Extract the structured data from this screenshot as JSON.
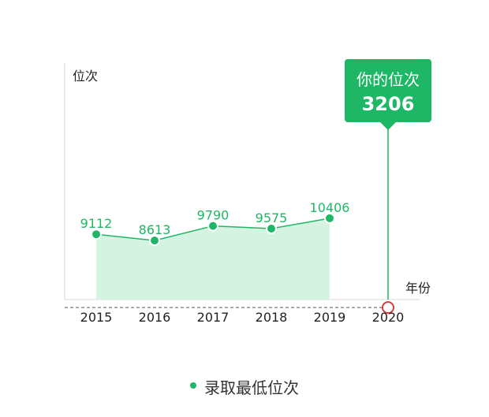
{
  "chart_data": {
    "type": "line",
    "y_axis_label": "位次",
    "x_axis_label": "年份",
    "categories": [
      "2015",
      "2016",
      "2017",
      "2018",
      "2019",
      "2020"
    ],
    "series": [
      {
        "name": "录取最低位次",
        "values": [
          9112,
          8613,
          9790,
          9575,
          10406,
          null
        ]
      }
    ],
    "your_rank": {
      "label": "你的位次",
      "value": 3206,
      "year": "2020"
    },
    "area_fill": true,
    "reference_line": "dashed",
    "colors": {
      "series": "#1db766",
      "area": "#d5f3e1",
      "marker_ring": "#d73b3b",
      "axis": "#e6e6e6",
      "dashed": "#777777"
    }
  },
  "legend": {
    "label": "录取最低位次"
  }
}
